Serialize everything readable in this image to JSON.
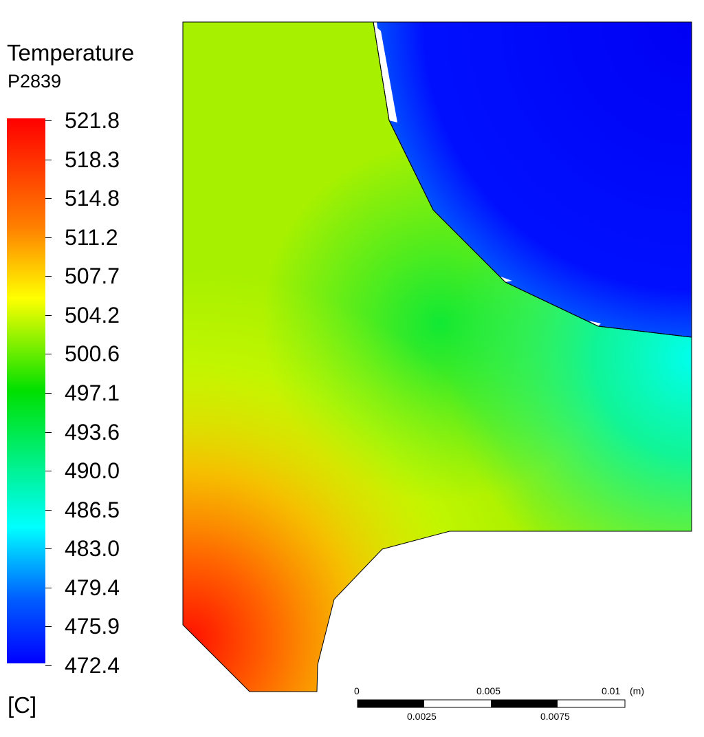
{
  "legend": {
    "title": "Temperature",
    "subtitle": "P2839",
    "units": "[C]",
    "ticks": [
      "521.8",
      "518.3",
      "514.8",
      "511.2",
      "507.7",
      "504.2",
      "500.6",
      "497.1",
      "493.6",
      "490.0",
      "486.5",
      "483.0",
      "479.4",
      "475.9",
      "472.4"
    ],
    "colormap": [
      "#ff0000",
      "#ff8000",
      "#ffff00",
      "#00e000",
      "#00ffff",
      "#0060ff",
      "#0000ff"
    ]
  },
  "scale_bar": {
    "top_labels": [
      "0",
      "0.005",
      "0.01"
    ],
    "bottom_labels": [
      "0.0025",
      "0.0075"
    ],
    "unit": "(m)"
  }
}
